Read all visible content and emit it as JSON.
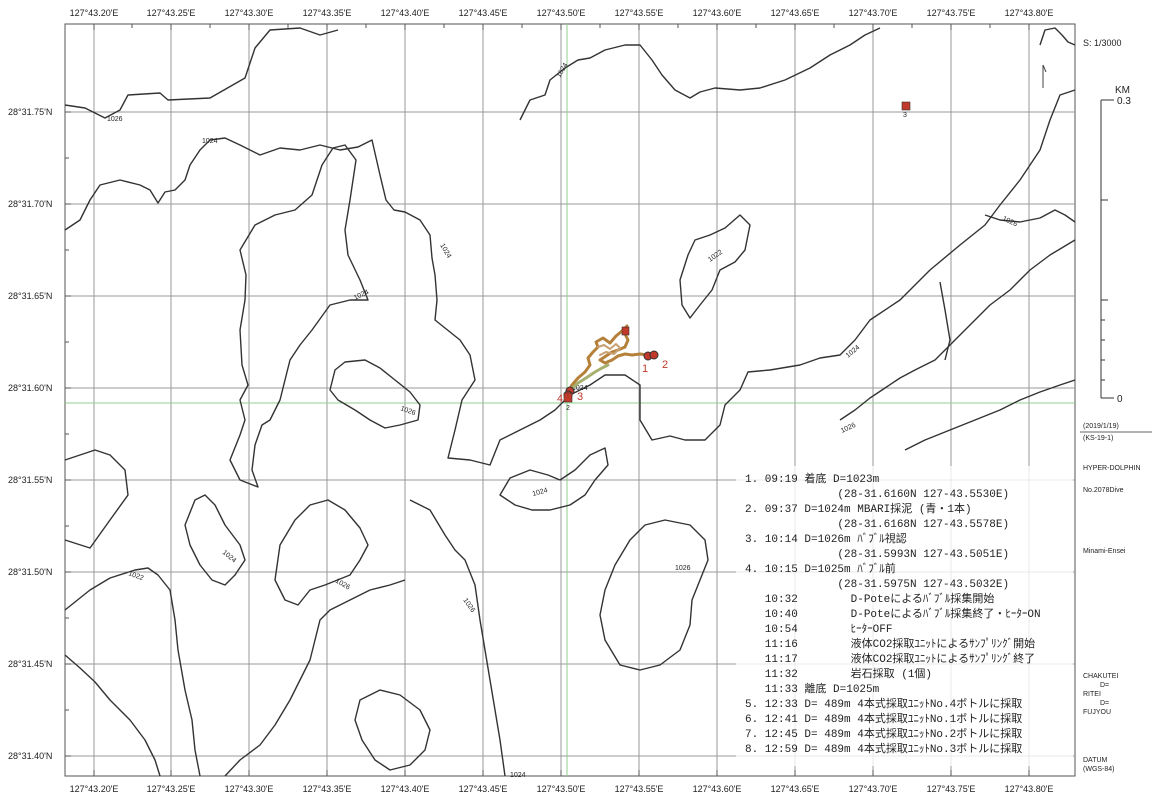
{
  "map": {
    "x_ticks": [
      "127°43.20'E",
      "127°43.25'E",
      "127°43.30'E",
      "127°43.35'E",
      "127°43.40'E",
      "127°43.45'E",
      "127°43.50'E",
      "127°43.55'E",
      "127°43.60'E",
      "127°43.65'E",
      "127°43.70'E",
      "127°43.75'E",
      "127°43.80'E"
    ],
    "y_ticks": [
      "28°31.75'N",
      "28°31.70'N",
      "28°31.65'N",
      "28°31.60'N",
      "28°31.55'N",
      "28°31.50'N",
      "28°31.45'N",
      "28°31.40'N"
    ],
    "contour_labels": [
      "1026",
      "1024",
      "1024",
      "1024",
      "1024",
      "1026",
      "1022",
      "1026",
      "1024",
      "1026",
      "1024",
      "1022",
      "1024",
      "1026",
      "1026",
      "1026",
      "1024",
      "1024"
    ],
    "markers": [
      "1",
      "2",
      "3",
      "4",
      "2",
      "3"
    ],
    "scale": {
      "ratio": "S: 1/3000",
      "unit": "KM",
      "top": "0.3",
      "bottom": "0"
    },
    "sidebar": {
      "date": "(2019/1/19)",
      "cruise": "(KS-19-1)",
      "vehicle": "HYPER-DOLPHIN",
      "dive": "No.2078Dive",
      "site": "Minami-Ensei",
      "chakutei": "CHAKUTEI",
      "chakutei_d": "D=",
      "ritei": "RITEI",
      "ritei_d": "D=",
      "fujyou": "FUJYOU",
      "datum": "DATUM",
      "datum_val": "(WGS-84)"
    },
    "log": [
      "1. 09:19 着底 D=1023m",
      "              (28-31.6160N 127-43.5530E)",
      "2. 09:37 D=1024m MBARI採泥 (青・1本)",
      "              (28-31.6168N 127-43.5578E)",
      "3. 10:14 D=1026m ﾊﾞﾌﾞﾙ視認",
      "              (28-31.5993N 127-43.5051E)",
      "4. 10:15 D=1025m ﾊﾞﾌﾞﾙ前",
      "              (28-31.5975N 127-43.5032E)",
      "   10:32        D-Poteによるﾊﾞﾌﾞﾙ採集開始",
      "   10:40        D-Poteによるﾊﾞﾌﾞﾙ採集終了・ﾋｰﾀｰON",
      "   10:54        ﾋｰﾀｰOFF",
      "   11:16        液体CO2採取ﾕﾆｯﾄによるｻﾝﾌﾟﾘﾝｸﾞ開始",
      "   11:17        液体CO2採取ﾕﾆｯﾄによるｻﾝﾌﾟﾘﾝｸﾞ終了",
      "   11:32        岩石採取 (1個)",
      "   11:33 離底 D=1025m",
      "5. 12:33 D= 489m 4本式採取ﾕﾆｯﾄNo.4ボトルに採取",
      "6. 12:41 D= 489m 4本式採取ﾕﾆｯﾄNo.1ボトルに採取",
      "7. 12:45 D= 489m 4本式採取ﾕﾆｯﾄNo.2ボトルに採取",
      "8. 12:59 D= 489m 4本式採取ﾕﾆｯﾄNo.3ボトルに採取"
    ],
    "colors": {
      "contour": "#333333",
      "grid": "#9a9a9a",
      "marker": "#c0392b",
      "track": "#b5803a",
      "track_highlight": "#a8b070",
      "cross_line": "#8fcf8f"
    }
  }
}
